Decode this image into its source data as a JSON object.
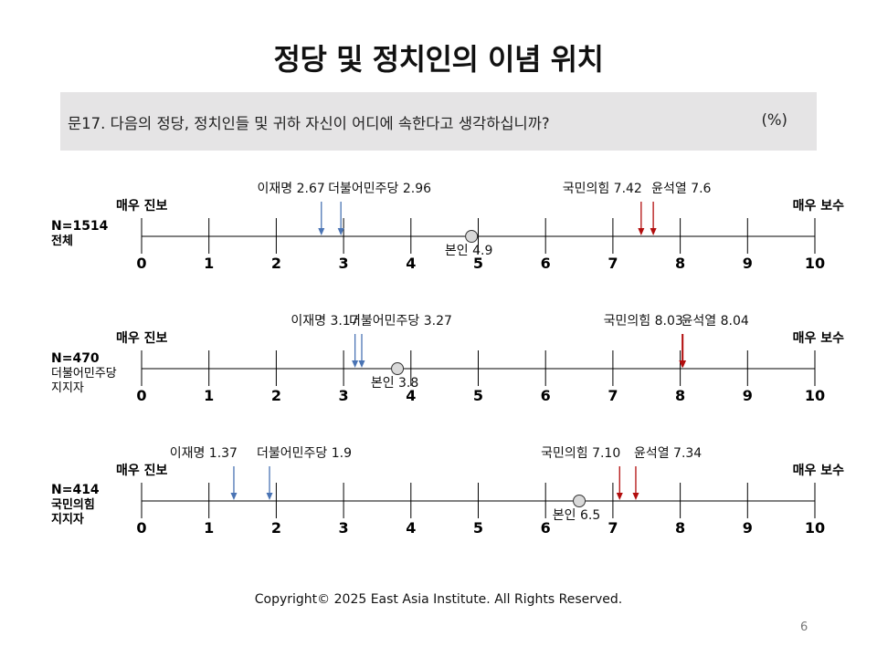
{
  "title": "정당 및 정치인의 이념 위치",
  "question": {
    "text": "문17. 다음의 정당, 정치인들 및 귀하 자신이 어디에 속한다고 생각하십니까?",
    "unit": "(%)"
  },
  "footer": "Copyright© 2025 East Asia Institute. All Rights Reserved.",
  "page_number": "6",
  "colors": {
    "progressive_arrow": "#4a74b4",
    "conservative_arrow": "#b20d0d",
    "self_marker_fill": "#d9d9d9",
    "axis": "#000000"
  },
  "chart_data": [
    {
      "type": "scatter",
      "group": [
        "N=1514",
        "전체"
      ],
      "xlim": [
        0,
        10
      ],
      "ticks": [
        "0",
        "1",
        "2",
        "3",
        "4",
        "5",
        "6",
        "7",
        "8",
        "9",
        "10"
      ],
      "left_label": "매우 진보",
      "right_label": "매우 보수",
      "points": [
        {
          "name": "이재명",
          "value": 2.67,
          "label": "이재명 2.67",
          "kind": "progressive"
        },
        {
          "name": "더불어민주당",
          "value": 2.96,
          "label": "더불어민주당 2.96",
          "kind": "progressive"
        },
        {
          "name": "국민의힘",
          "value": 7.42,
          "label": "국민의힘 7.42",
          "kind": "conservative"
        },
        {
          "name": "윤석열",
          "value": 7.6,
          "label": "윤석열 7.6",
          "kind": "conservative"
        },
        {
          "name": "본인",
          "value": 4.9,
          "label": "본인 4.9",
          "kind": "self"
        }
      ]
    },
    {
      "type": "scatter",
      "group": [
        "N=470",
        "더불어민주당",
        "지지자"
      ],
      "xlim": [
        0,
        10
      ],
      "ticks": [
        "0",
        "1",
        "2",
        "3",
        "4",
        "5",
        "6",
        "7",
        "8",
        "9",
        "10"
      ],
      "left_label": "매우 진보",
      "right_label": "매우 보수",
      "points": [
        {
          "name": "이재명",
          "value": 3.17,
          "label": "이재명 3.17",
          "kind": "progressive"
        },
        {
          "name": "더불어민주당",
          "value": 3.27,
          "label": "더불어민주당 3.27",
          "kind": "progressive"
        },
        {
          "name": "국민의힘",
          "value": 8.03,
          "label": "국민의힘 8.03",
          "kind": "conservative"
        },
        {
          "name": "윤석열",
          "value": 8.04,
          "label": "윤석열 8.04",
          "kind": "conservative"
        },
        {
          "name": "본인",
          "value": 3.8,
          "label": "본인 3.8",
          "kind": "self"
        }
      ]
    },
    {
      "type": "scatter",
      "group": [
        "N=414",
        "국민의힘",
        "지지자"
      ],
      "xlim": [
        0,
        10
      ],
      "ticks": [
        "0",
        "1",
        "2",
        "3",
        "4",
        "5",
        "6",
        "7",
        "8",
        "9",
        "10"
      ],
      "left_label": "매우 진보",
      "right_label": "매우 보수",
      "points": [
        {
          "name": "이재명",
          "value": 1.37,
          "label": "이재명 1.37",
          "kind": "progressive"
        },
        {
          "name": "더불어민주당",
          "value": 1.9,
          "label": "더불어민주당 1.9",
          "kind": "progressive"
        },
        {
          "name": "국민의힘",
          "value": 7.1,
          "label": "국민의힘 7.10",
          "kind": "conservative"
        },
        {
          "name": "윤석열",
          "value": 7.34,
          "label": "윤석열 7.34",
          "kind": "conservative"
        },
        {
          "name": "본인",
          "value": 6.5,
          "label": "본인 6.5",
          "kind": "self"
        }
      ]
    }
  ]
}
